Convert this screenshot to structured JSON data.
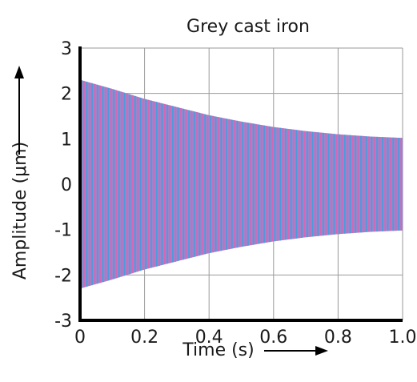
{
  "chart_data": {
    "type": "line",
    "title": "Grey cast iron",
    "xlabel": "Time (s)",
    "ylabel": "Amplitude (μm)",
    "xlim": [
      0,
      1.0
    ],
    "ylim": [
      -3,
      3
    ],
    "x_ticks": [
      "0",
      "0.2",
      "0.4",
      "0.6",
      "0.8",
      "1.0"
    ],
    "y_ticks": [
      "3",
      "2",
      "1",
      "0",
      "-1",
      "-2",
      "-3"
    ],
    "grid": true,
    "series": [
      {
        "style": "decaying oscillation (dense)",
        "envelope": {
          "x": [
            0,
            0.1,
            0.2,
            0.3,
            0.4,
            0.5,
            0.6,
            0.7,
            0.8,
            0.9,
            1.0
          ],
          "upper": [
            2.3,
            2.1,
            1.88,
            1.7,
            1.52,
            1.38,
            1.26,
            1.17,
            1.1,
            1.05,
            1.02
          ],
          "lower": [
            -2.3,
            -2.1,
            -1.88,
            -1.7,
            -1.52,
            -1.38,
            -1.26,
            -1.17,
            -1.1,
            -1.05,
            -1.02
          ]
        },
        "colors": [
          "#3aa0e0",
          "#e060b0"
        ]
      }
    ]
  }
}
